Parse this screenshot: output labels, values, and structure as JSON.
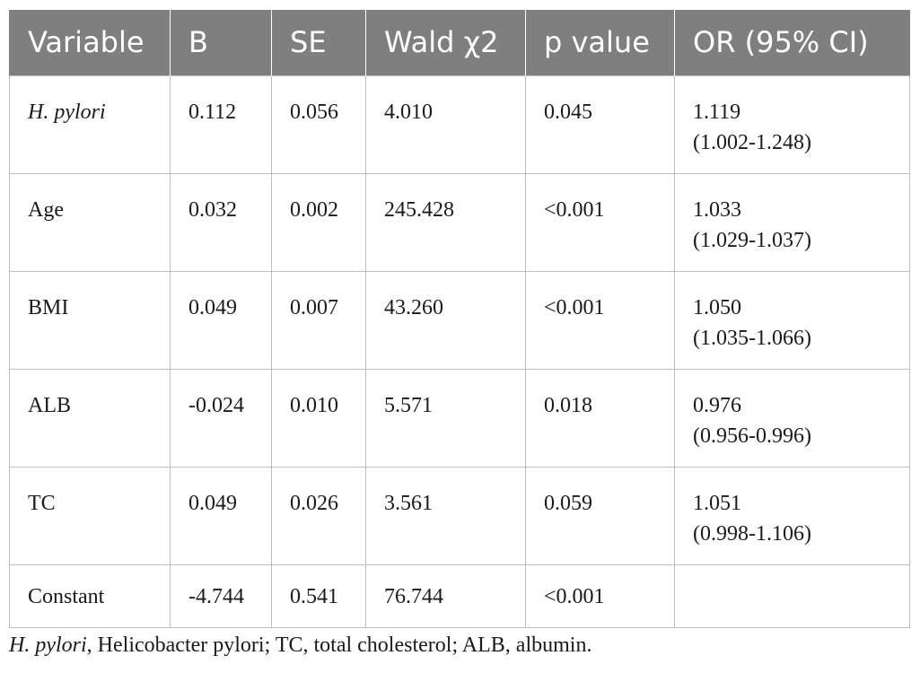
{
  "table": {
    "headers": [
      "Variable",
      "B",
      "SE",
      "Wald χ2",
      "p value",
      "OR (95% CI)"
    ],
    "rows": [
      {
        "variable": "H. pylori",
        "b": "0.112",
        "se": "0.056",
        "wald": "4.010",
        "p": "0.045",
        "or": "1.119",
        "ci": "(1.002-1.248)"
      },
      {
        "variable": "Age",
        "b": "0.032",
        "se": "0.002",
        "wald": "245.428",
        "p": "<0.001",
        "or": "1.033",
        "ci": "(1.029-1.037)"
      },
      {
        "variable": "BMI",
        "b": "0.049",
        "se": "0.007",
        "wald": "43.260",
        "p": "<0.001",
        "or": "1.050",
        "ci": "(1.035-1.066)"
      },
      {
        "variable": "ALB",
        "b": "-0.024",
        "se": "0.010",
        "wald": "5.571",
        "p": "0.018",
        "or": "0.976",
        "ci": "(0.956-0.996)"
      },
      {
        "variable": "TC",
        "b": "0.049",
        "se": "0.026",
        "wald": "3.561",
        "p": "0.059",
        "or": "1.051",
        "ci": "(0.998-1.106)"
      },
      {
        "variable": "Constant",
        "b": "-4.744",
        "se": "0.541",
        "wald": "76.744",
        "p": "<0.001",
        "or": "",
        "ci": ""
      }
    ]
  },
  "footnote": {
    "italic_part": "H. pylori",
    "rest": ", Helicobacter pylori; TC, total cholesterol; ALB, albumin."
  }
}
